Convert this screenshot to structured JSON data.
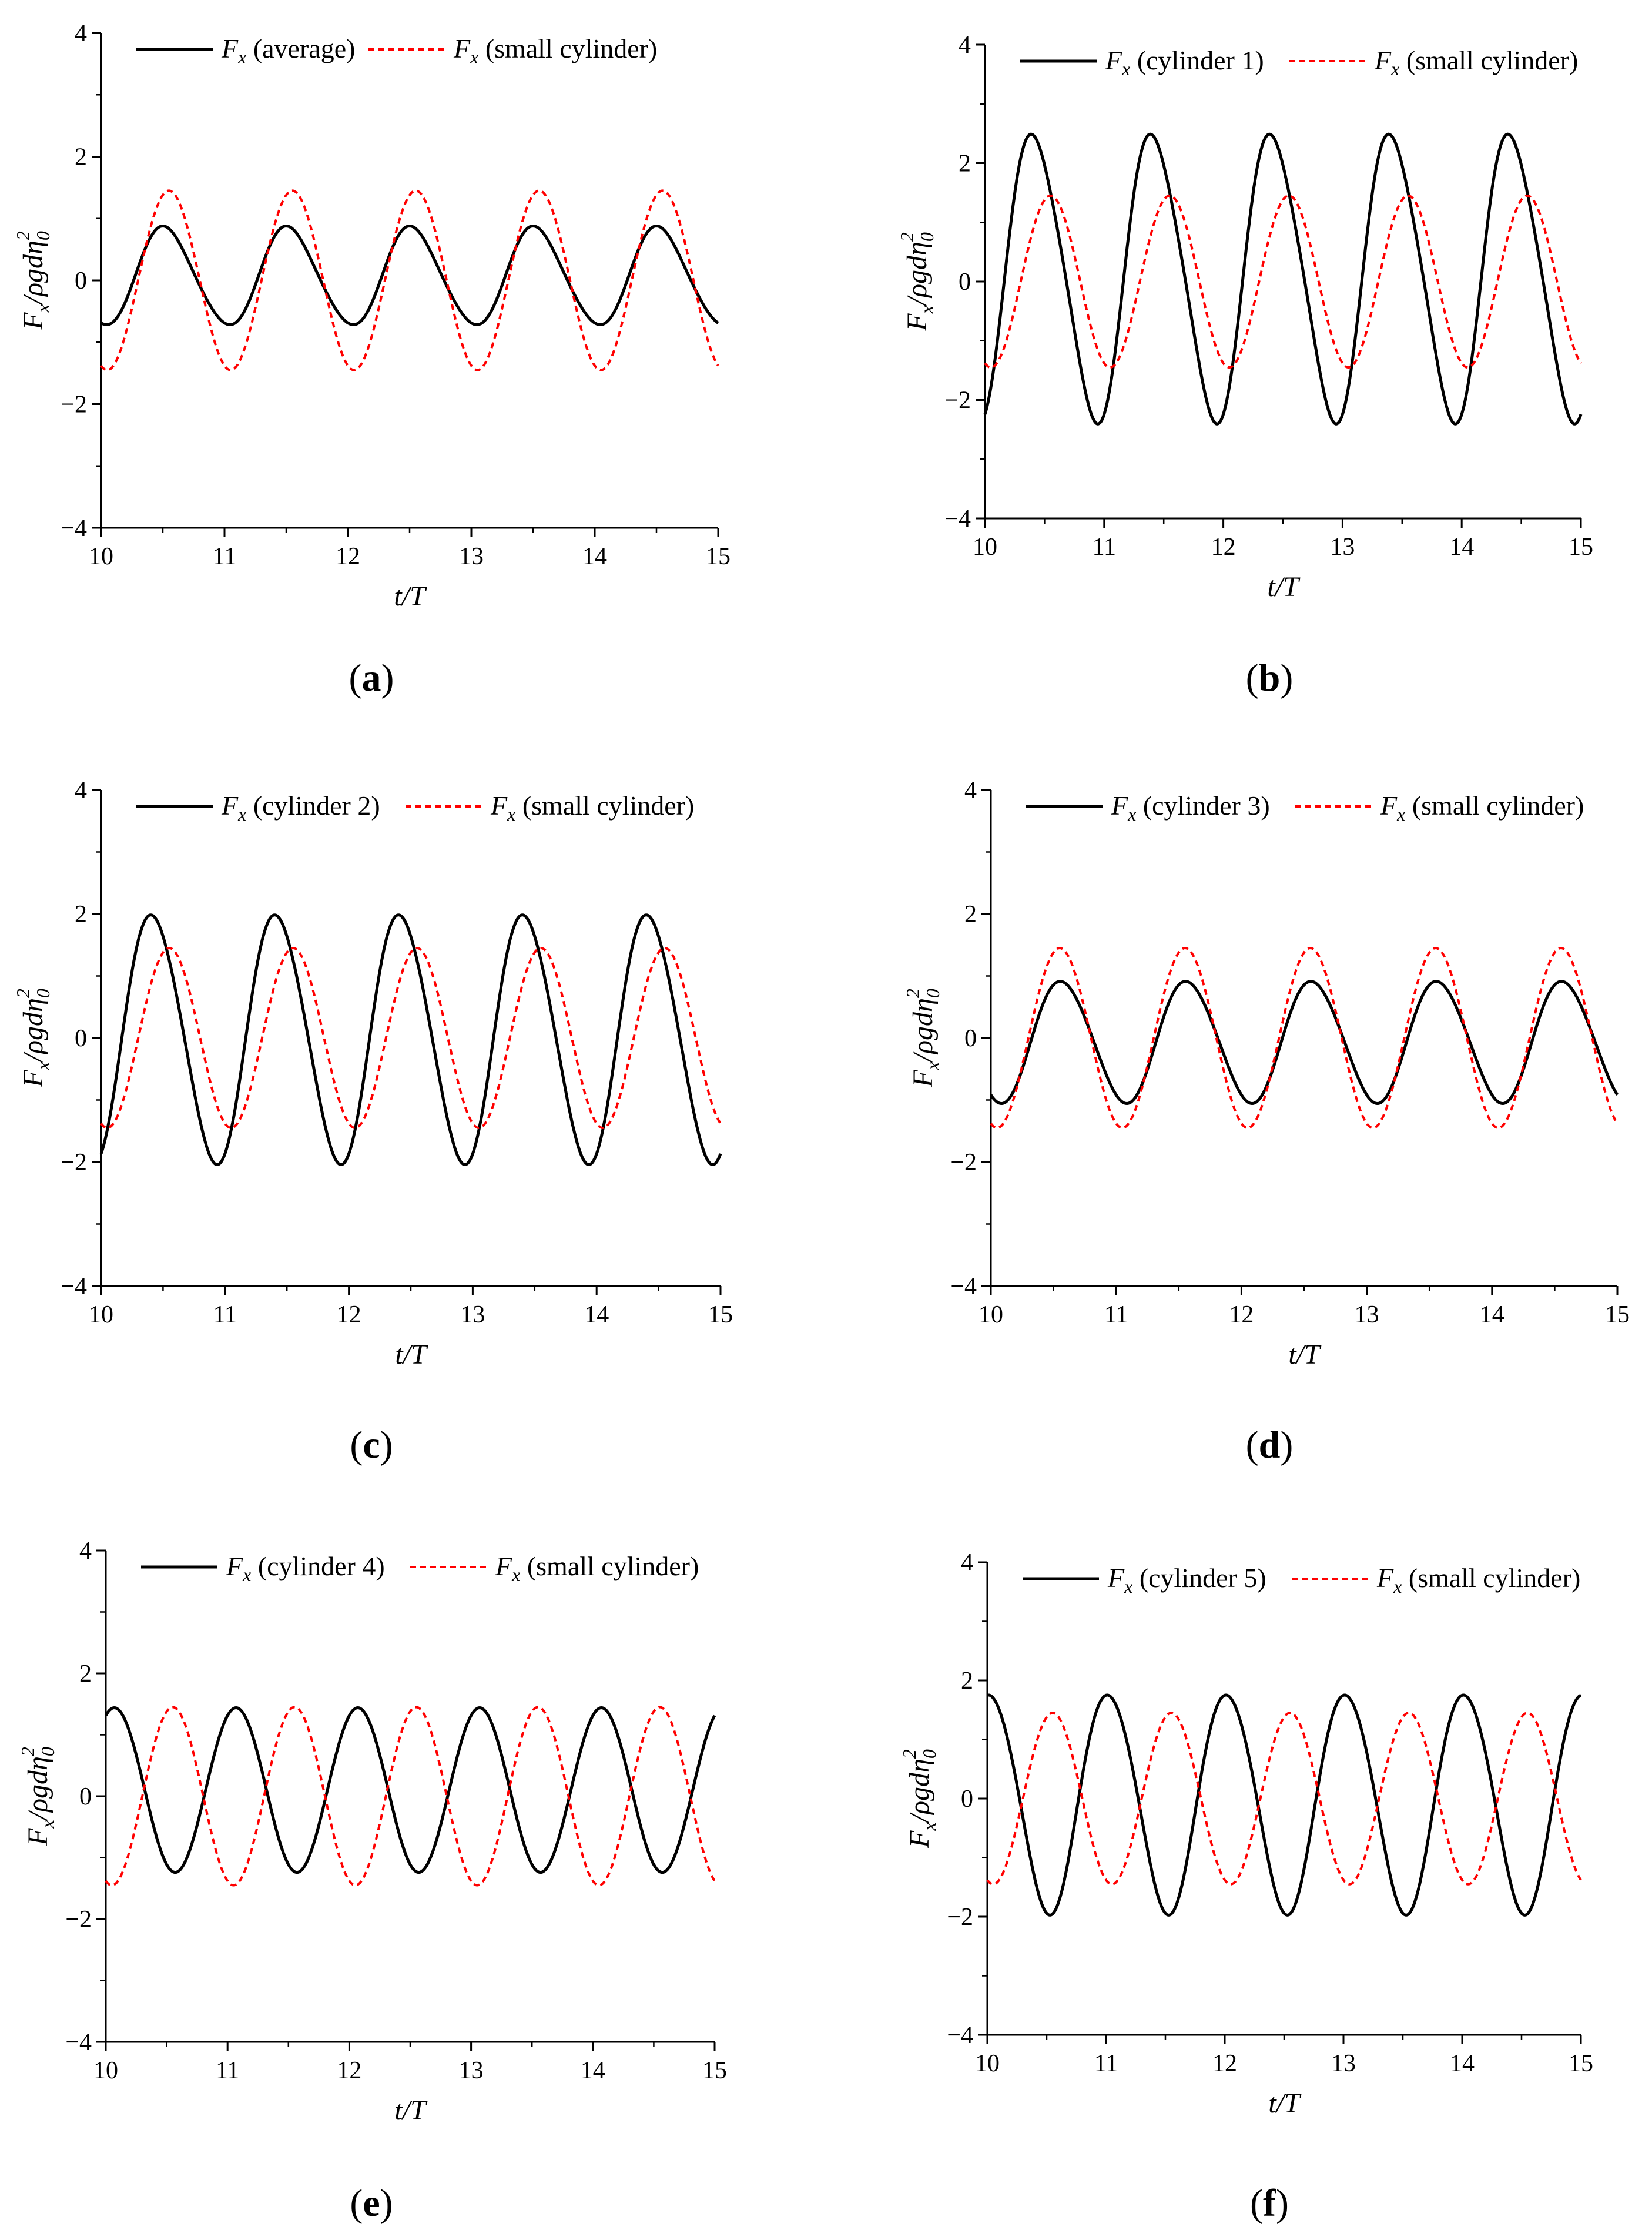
{
  "figure": {
    "colors": {
      "line": "#000000",
      "reference": "#ff0000",
      "axis": "#000000"
    }
  },
  "chart_data": [
    {
      "id": "a",
      "panel_label": "a",
      "type": "line",
      "xlabel": "t/T",
      "ylabel": "F_x/ρgdη_0^2",
      "xlim": [
        10,
        15
      ],
      "ylim": [
        -4,
        4
      ],
      "xticks": [
        "10",
        "11",
        "12",
        "13",
        "14",
        "15"
      ],
      "yticks": [
        "−4",
        "−2",
        "0",
        "2",
        "4"
      ],
      "legend_position": "top",
      "series": [
        {
          "name": "F_x (average)",
          "legend_symbol": "F",
          "legend_subscript": "x",
          "legend_text": " (average)",
          "color": "#000000",
          "style": "solid",
          "amplitude": 0.79,
          "offset": 0.06,
          "phase": 0.52,
          "harmonic2": 0.06,
          "harmonic2_phase": 0.3
        },
        {
          "name": "F_x (small cylinder)",
          "legend_symbol": "F",
          "legend_subscript": "x",
          "legend_text": " (small cylinder)",
          "color": "#ff0000",
          "style": "dashed",
          "amplitude": 1.45,
          "offset": 0.0,
          "phase": 0.55,
          "harmonic2": 0.0,
          "harmonic2_phase": 0.0
        }
      ]
    },
    {
      "id": "b",
      "panel_label": "b",
      "type": "line",
      "xlabel": "t/T",
      "ylabel": "F_x/ρgdη_0^2",
      "xlim": [
        10,
        15
      ],
      "ylim": [
        -4,
        4
      ],
      "xticks": [
        "10",
        "11",
        "12",
        "13",
        "14",
        "15"
      ],
      "yticks": [
        "−4",
        "−2",
        "0",
        "2",
        "4"
      ],
      "legend_position": "top",
      "series": [
        {
          "name": "F_x (cylinder 1)",
          "legend_symbol": "F",
          "legend_subscript": "x",
          "legend_text": " (cylinder 1)",
          "color": "#000000",
          "style": "solid",
          "amplitude": 2.4,
          "offset": 0.1,
          "phase": 0.42,
          "harmonic2": 0.25,
          "harmonic2_phase": 0.15
        },
        {
          "name": "F_x (small cylinder)",
          "legend_symbol": "F",
          "legend_subscript": "x",
          "legend_text": " (small cylinder)",
          "color": "#ff0000",
          "style": "dashed",
          "amplitude": 1.45,
          "offset": 0.0,
          "phase": 0.55,
          "harmonic2": 0.0,
          "harmonic2_phase": 0.0
        }
      ]
    },
    {
      "id": "c",
      "panel_label": "c",
      "type": "line",
      "xlabel": "t/T",
      "ylabel": "F_x/ρgdη_0^2",
      "xlim": [
        10,
        15
      ],
      "ylim": [
        -4,
        4
      ],
      "xticks": [
        "10",
        "11",
        "12",
        "13",
        "14",
        "15"
      ],
      "yticks": [
        "−4",
        "−2",
        "0",
        "2",
        "4"
      ],
      "legend_position": "top",
      "series": [
        {
          "name": "F_x (cylinder 2)",
          "legend_symbol": "F",
          "legend_subscript": "x",
          "legend_text": " (cylinder 2)",
          "color": "#000000",
          "style": "solid",
          "amplitude": 2.0,
          "offset": 0.0,
          "phase": 0.42,
          "harmonic2": 0.12,
          "harmonic2_phase": 0.15
        },
        {
          "name": "F_x (small cylinder)",
          "legend_symbol": "F",
          "legend_subscript": "x",
          "legend_text": " (small cylinder)",
          "color": "#ff0000",
          "style": "dashed",
          "amplitude": 1.45,
          "offset": 0.0,
          "phase": 0.55,
          "harmonic2": 0.0,
          "harmonic2_phase": 0.0
        }
      ]
    },
    {
      "id": "d",
      "panel_label": "d",
      "type": "line",
      "xlabel": "t/T",
      "ylabel": "F_x/ρgdη_0^2",
      "xlim": [
        10,
        15
      ],
      "ylim": [
        -4,
        4
      ],
      "xticks": [
        "10",
        "11",
        "12",
        "13",
        "14",
        "15"
      ],
      "yticks": [
        "−4",
        "−2",
        "0",
        "2",
        "4"
      ],
      "legend_position": "top",
      "series": [
        {
          "name": "F_x (cylinder 3)",
          "legend_symbol": "F",
          "legend_subscript": "x",
          "legend_text": " (cylinder 3)",
          "color": "#000000",
          "style": "solid",
          "amplitude": 0.98,
          "offset": -0.06,
          "phase": 0.57,
          "harmonic2": 0.05,
          "harmonic2_phase": 0.3
        },
        {
          "name": "F_x (small cylinder)",
          "legend_symbol": "F",
          "legend_subscript": "x",
          "legend_text": " (small cylinder)",
          "color": "#ff0000",
          "style": "dashed",
          "amplitude": 1.45,
          "offset": 0.0,
          "phase": 0.55,
          "harmonic2": 0.0,
          "harmonic2_phase": 0.0
        }
      ]
    },
    {
      "id": "e",
      "panel_label": "e",
      "type": "line",
      "xlabel": "t/T",
      "ylabel": "F_x/ρgdη_0^2",
      "xlim": [
        10,
        15
      ],
      "ylim": [
        -4,
        4
      ],
      "xticks": [
        "10",
        "11",
        "12",
        "13",
        "14",
        "15"
      ],
      "yticks": [
        "−4",
        "−2",
        "0",
        "2",
        "4"
      ],
      "legend_position": "top",
      "series": [
        {
          "name": "F_x (cylinder 4)",
          "legend_symbol": "F",
          "legend_subscript": "x",
          "legend_text": " (cylinder 4)",
          "color": "#000000",
          "style": "solid",
          "amplitude": 1.34,
          "offset": 0.1,
          "phase": 0.07,
          "harmonic2": 0.0,
          "harmonic2_phase": 0.0
        },
        {
          "name": "F_x (small cylinder)",
          "legend_symbol": "F",
          "legend_subscript": "x",
          "legend_text": " (small cylinder)",
          "color": "#ff0000",
          "style": "dashed",
          "amplitude": 1.45,
          "offset": 0.0,
          "phase": 0.55,
          "harmonic2": 0.0,
          "harmonic2_phase": 0.0
        }
      ]
    },
    {
      "id": "f",
      "panel_label": "f",
      "type": "line",
      "xlabel": "t/T",
      "ylabel": "F_x/ρgdη_0^2",
      "xlim": [
        10,
        15
      ],
      "ylim": [
        -4,
        4
      ],
      "xticks": [
        "10",
        "11",
        "12",
        "13",
        "14",
        "15"
      ],
      "yticks": [
        "−4",
        "−2",
        "0",
        "2",
        "4"
      ],
      "legend_position": "top",
      "series": [
        {
          "name": "F_x (cylinder 5)",
          "legend_symbol": "F",
          "legend_subscript": "x",
          "legend_text": " (cylinder 5)",
          "color": "#000000",
          "style": "solid",
          "amplitude": 1.86,
          "offset": -0.05,
          "phase": 0.02,
          "harmonic2": 0.08,
          "harmonic2_phase": 0.2
        },
        {
          "name": "F_x (small cylinder)",
          "legend_symbol": "F",
          "legend_subscript": "x",
          "legend_text": " (small cylinder)",
          "color": "#ff0000",
          "style": "dashed",
          "amplitude": 1.45,
          "offset": 0.0,
          "phase": 0.55,
          "harmonic2": 0.0,
          "harmonic2_phase": 0.0
        }
      ]
    }
  ]
}
